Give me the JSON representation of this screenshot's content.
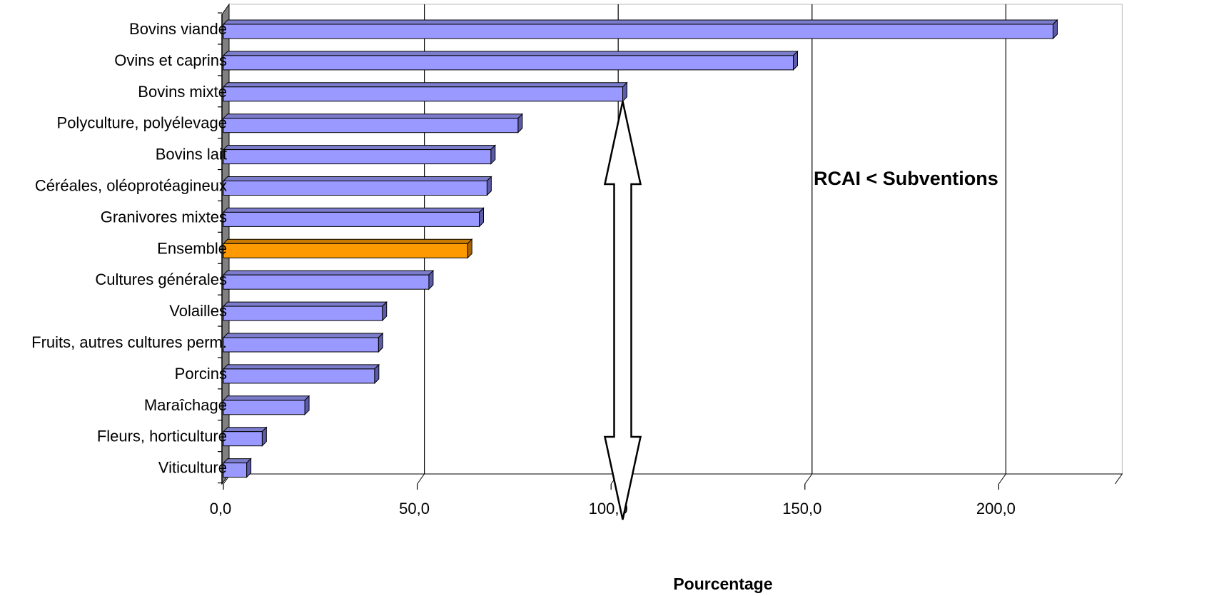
{
  "chart_data": {
    "type": "bar",
    "orientation": "horizontal",
    "style": "3d",
    "categories": [
      "Bovins viande",
      "Ovins et caprins",
      "Bovins mixte",
      "Polyculture, polyélevage",
      "Bovins lait",
      "Céréales, oléoprotéagineux",
      "Granivores mixtes",
      "Ensemble",
      "Cultures générales",
      "Volailles",
      "Fruits, autres cultures perm.",
      "Porcins",
      "Maraîchage",
      "Fleurs, horticulture",
      "Viticulture"
    ],
    "values": [
      214,
      147,
      103,
      76,
      69,
      68,
      66,
      63,
      53,
      41,
      40,
      39,
      21,
      10,
      6
    ],
    "highlight_category": "Ensemble",
    "xlabel": "Pourcentage",
    "ylabel": "",
    "xlim": [
      0,
      230
    ],
    "xticks": [
      "0,0",
      "50,0",
      "100,0",
      "150,0",
      "200,0"
    ],
    "xtick_values": [
      0,
      50,
      100,
      150,
      200
    ],
    "grid": true,
    "legend": "none",
    "annotation": {
      "text": "RCAI < Subventions",
      "arrow": "double-vertical",
      "arrow_x_value": 103
    },
    "colors": {
      "bar": "#9999FF",
      "bar_side": "#5C5CA8",
      "bar_top": "#7C7CCC",
      "highlight": "#FF9900",
      "highlight_side": "#A86400",
      "highlight_top": "#CC7A00",
      "wall": "#808080"
    }
  }
}
